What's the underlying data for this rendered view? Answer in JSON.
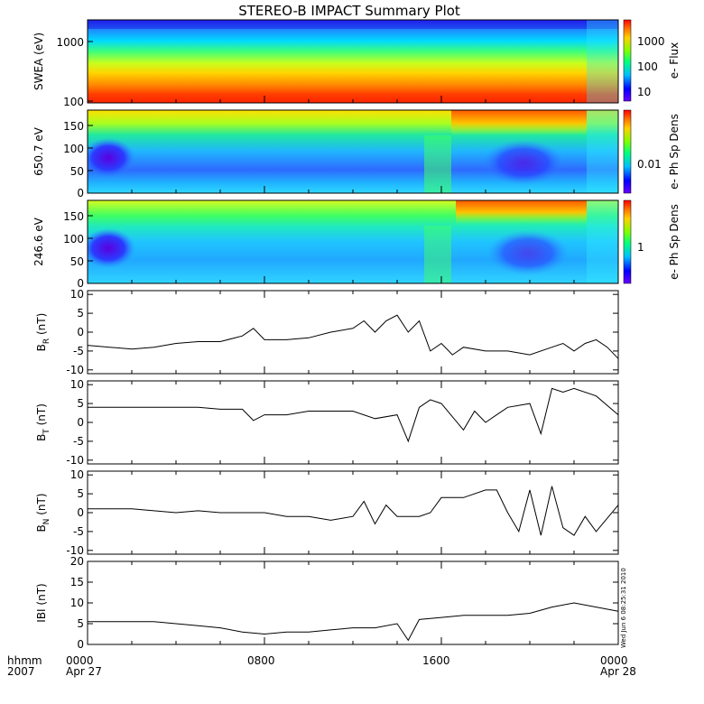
{
  "title": "STEREO-B IMPACT Summary Plot",
  "footer": {
    "time_label": "hhmm",
    "year_label": "2007",
    "ticks": [
      "0000",
      "0800",
      "1600",
      "0000"
    ],
    "dates": [
      "Apr 27",
      "",
      "",
      "Apr 28"
    ]
  },
  "timestamp": "Wed Jun 6 08:25:31 2010",
  "colors": {
    "line": "#000000",
    "axis": "#000000",
    "background": "#ffffff"
  },
  "chart_data": [
    {
      "type": "heatmap",
      "ylabel": "SWEA (eV)",
      "yscale": "log",
      "ylim": [
        100,
        2000
      ],
      "yticks": [
        "100",
        "1000"
      ],
      "colorbar": {
        "label": "e- Flux",
        "scale": "log",
        "ticks": [
          "10",
          "100",
          "1000"
        ]
      },
      "x": {
        "start": "0000 Apr 27",
        "end": "0000 Apr 28"
      }
    },
    {
      "type": "heatmap",
      "ylabel": "650.7 eV",
      "ylim": [
        0,
        180
      ],
      "yticks": [
        "0",
        "50",
        "100",
        "150"
      ],
      "colorbar": {
        "label": "e- Ph Sp Dens",
        "scale": "log",
        "ticks": [
          "0.01"
        ]
      }
    },
    {
      "type": "heatmap",
      "ylabel": "246.6 eV",
      "ylim": [
        0,
        180
      ],
      "yticks": [
        "0",
        "50",
        "100",
        "150"
      ],
      "colorbar": {
        "label": "e- Ph Sp Dens",
        "scale": "log",
        "ticks": [
          "1"
        ]
      }
    },
    {
      "type": "line",
      "ylabel": "BR (nT)",
      "ylabel_main": "B",
      "ylabel_sub": "R",
      "ylabel_unit": "(nT)",
      "ylim": [
        -11,
        11
      ],
      "yticks": [
        "-10",
        "-5",
        "0",
        "5",
        "10"
      ],
      "x": [
        0,
        1,
        2,
        3,
        4,
        5,
        6,
        7,
        7.5,
        8,
        9,
        10,
        11,
        12,
        12.5,
        13,
        13.5,
        14,
        14.5,
        15,
        15.5,
        16,
        16.5,
        17,
        18,
        19,
        20,
        21,
        21.5,
        22,
        22.5,
        23,
        23.5,
        24
      ],
      "values": [
        -3.5,
        -4,
        -4.5,
        -4,
        -3,
        -2.5,
        -2.5,
        -1,
        1,
        -2,
        -2,
        -1.5,
        0,
        1,
        3,
        0,
        3,
        4.5,
        0,
        3,
        -5,
        -3,
        -6,
        -4,
        -5,
        -5,
        -6,
        -4,
        -3,
        -5,
        -3,
        -2,
        -4,
        -7
      ]
    },
    {
      "type": "line",
      "ylabel": "BT (nT)",
      "ylabel_main": "B",
      "ylabel_sub": "T",
      "ylabel_unit": "(nT)",
      "ylim": [
        -11,
        11
      ],
      "yticks": [
        "-10",
        "-5",
        "0",
        "5",
        "10"
      ],
      "x": [
        0,
        1,
        2,
        3,
        4,
        5,
        6,
        7,
        7.5,
        8,
        9,
        10,
        11,
        12,
        13,
        14,
        14.5,
        15,
        15.5,
        16,
        17,
        17.5,
        18,
        18.5,
        19,
        20,
        20.5,
        21,
        21.5,
        22,
        23,
        24
      ],
      "values": [
        4,
        4,
        4,
        4,
        4,
        4,
        3.5,
        3.5,
        0.5,
        2,
        2,
        3,
        3,
        3,
        1,
        2,
        -5,
        4,
        6,
        5,
        -2,
        3,
        0,
        2,
        4,
        5,
        -3,
        9,
        8,
        9,
        7,
        2
      ]
    },
    {
      "type": "line",
      "ylabel": "BN (nT)",
      "ylabel_main": "B",
      "ylabel_sub": "N",
      "ylabel_unit": "(nT)",
      "ylim": [
        -11,
        11
      ],
      "yticks": [
        "-10",
        "-5",
        "0",
        "5",
        "10"
      ],
      "x": [
        0,
        1,
        2,
        3,
        4,
        5,
        6,
        7,
        8,
        9,
        10,
        11,
        12,
        12.5,
        13,
        13.5,
        14,
        15,
        15.5,
        16,
        17,
        18,
        18.5,
        19,
        19.5,
        20,
        20.5,
        21,
        21.5,
        22,
        22.5,
        23,
        24
      ],
      "values": [
        1,
        1,
        1,
        0.5,
        0,
        0.5,
        0,
        0,
        0,
        -1,
        -1,
        -2,
        -1,
        3,
        -3,
        2,
        -1,
        -1,
        0,
        4,
        4,
        6,
        6,
        0,
        -5,
        6,
        -6,
        7,
        -4,
        -6,
        -1,
        -5,
        2
      ]
    },
    {
      "type": "line",
      "ylabel": "|B| (nT)",
      "ylabel_main": "IBI",
      "ylabel_sub": "",
      "ylabel_unit": "(nT)",
      "ylim": [
        0,
        20
      ],
      "yticks": [
        "0",
        "5",
        "10",
        "15",
        "20"
      ],
      "x": [
        0,
        1,
        2,
        3,
        4,
        5,
        6,
        7,
        8,
        9,
        10,
        11,
        12,
        13,
        14,
        14.5,
        15,
        16,
        17,
        18,
        19,
        20,
        21,
        22,
        23,
        24
      ],
      "values": [
        5.5,
        5.5,
        5.5,
        5.5,
        5,
        4.5,
        4,
        3,
        2.5,
        3,
        3,
        3.5,
        4,
        4,
        5,
        1,
        6,
        6.5,
        7,
        7,
        7,
        7.5,
        9,
        10,
        9,
        8
      ]
    }
  ]
}
